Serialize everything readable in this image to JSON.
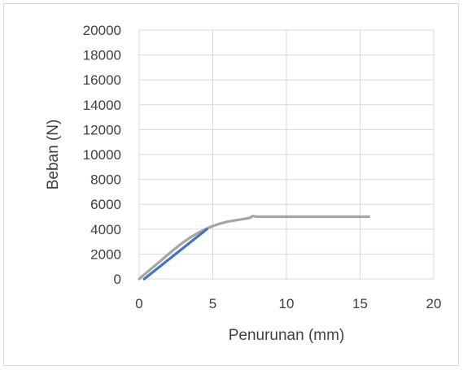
{
  "chart_data": {
    "type": "line",
    "title": "",
    "xlabel": "Penurunan (mm)",
    "ylabel": "Beban (N)",
    "xlim": [
      0,
      20
    ],
    "ylim": [
      0,
      20000
    ],
    "x_ticks": [
      "0",
      "5",
      "10",
      "15",
      "20"
    ],
    "y_ticks": [
      "0",
      "2000",
      "4000",
      "6000",
      "8000",
      "10000",
      "12000",
      "14000",
      "16000",
      "18000",
      "20000"
    ],
    "grid": true,
    "legend": "none",
    "series": [
      {
        "color": "#a5a5a5",
        "points": [
          [
            0,
            0
          ],
          [
            0.5,
            500
          ],
          [
            1,
            1000
          ],
          [
            1.5,
            1500
          ],
          [
            2,
            2000
          ],
          [
            2.5,
            2500
          ],
          [
            3,
            2950
          ],
          [
            3.5,
            3350
          ],
          [
            4,
            3700
          ],
          [
            4.5,
            4000
          ],
          [
            5,
            4250
          ],
          [
            5.5,
            4450
          ],
          [
            6,
            4600
          ],
          [
            6.5,
            4700
          ],
          [
            7,
            4800
          ],
          [
            7.5,
            4900
          ],
          [
            7.7,
            5050
          ],
          [
            8,
            5000
          ],
          [
            9,
            5000
          ],
          [
            10,
            5000
          ],
          [
            11,
            5000
          ],
          [
            12,
            5000
          ],
          [
            13,
            5000
          ],
          [
            14,
            5000
          ],
          [
            15,
            5000
          ],
          [
            15.6,
            5000
          ]
        ]
      },
      {
        "color": "#4472c4",
        "points": [
          [
            0.35,
            0
          ],
          [
            4.6,
            4000
          ]
        ]
      }
    ]
  }
}
